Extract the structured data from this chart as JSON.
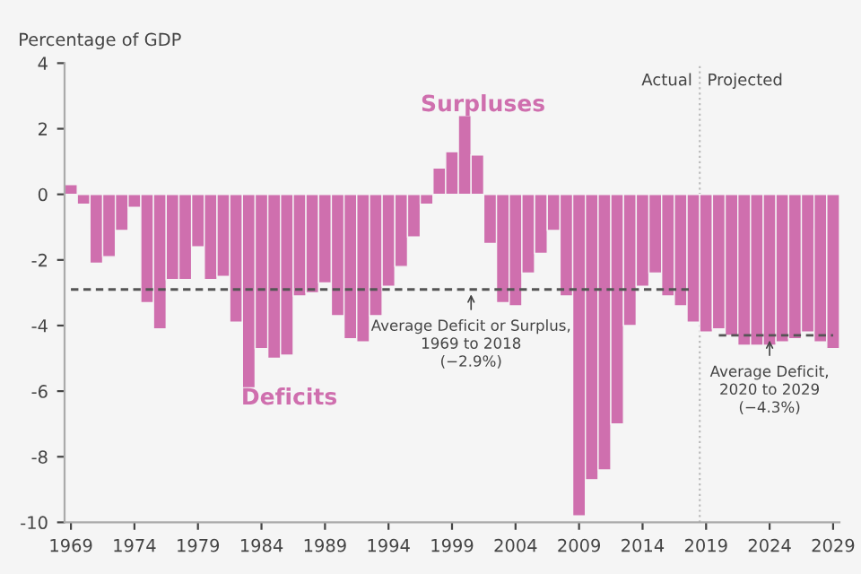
{
  "chart_data": {
    "type": "bar",
    "ylabel": "Percentage of GDP",
    "x": [
      1969,
      1970,
      1971,
      1972,
      1973,
      1974,
      1975,
      1976,
      1977,
      1978,
      1979,
      1980,
      1981,
      1982,
      1983,
      1984,
      1985,
      1986,
      1987,
      1988,
      1989,
      1990,
      1991,
      1992,
      1993,
      1994,
      1995,
      1996,
      1997,
      1998,
      1999,
      2000,
      2001,
      2002,
      2003,
      2004,
      2005,
      2006,
      2007,
      2008,
      2009,
      2010,
      2011,
      2012,
      2013,
      2014,
      2015,
      2016,
      2017,
      2018,
      2019,
      2020,
      2021,
      2022,
      2023,
      2024,
      2025,
      2026,
      2027,
      2028,
      2029
    ],
    "series": [
      {
        "color": "#cf6fae",
        "values": [
          0.3,
          -0.3,
          -2.1,
          -1.9,
          -1.1,
          -0.4,
          -3.3,
          -4.1,
          -2.6,
          -2.6,
          -1.6,
          -2.6,
          -2.5,
          -3.9,
          -5.9,
          -4.7,
          -5.0,
          -4.9,
          -3.1,
          -3.0,
          -2.7,
          -3.7,
          -4.4,
          -4.5,
          -3.7,
          -2.8,
          -2.2,
          -1.3,
          -0.3,
          0.8,
          1.3,
          2.4,
          1.2,
          -1.5,
          -3.3,
          -3.4,
          -2.4,
          -1.8,
          -1.1,
          -3.1,
          -9.8,
          -8.7,
          -8.4,
          -7.0,
          -4.0,
          -2.8,
          -2.4,
          -3.1,
          -3.4,
          -3.9,
          -4.2,
          -4.1,
          -4.3,
          -4.6,
          -4.6,
          -4.6,
          -4.5,
          -4.4,
          -4.2,
          -4.5,
          -4.7
        ]
      },
      {
        "type": "line",
        "color": "#555555",
        "line_style": "dashed",
        "x": [
          1969,
          2018
        ],
        "values": [
          -2.9,
          -2.9
        ]
      },
      {
        "type": "line",
        "color": "#555555",
        "line_style": "dashed",
        "x": [
          2020,
          2029
        ],
        "values": [
          -4.3,
          -4.3
        ]
      }
    ],
    "xlim": [
      1968.5,
      2029.5
    ],
    "xticks": [
      1969,
      1974,
      1979,
      1984,
      1989,
      1994,
      1999,
      2004,
      2009,
      2014,
      2019,
      2024,
      2029
    ],
    "ylim": [
      -10,
      4
    ],
    "yticks": [
      -10,
      -8,
      -6,
      -4,
      -2,
      0,
      2,
      4
    ],
    "grid": false,
    "ref_lines": [
      {
        "axis": "x",
        "value": 2018.5,
        "color": "#bbbbbb",
        "line_style": "dotted"
      }
    ],
    "annotations": [
      "Surpluses",
      "Deficits",
      {
        "text": "Average Deficit or Surplus,\n1969 to 2018\n(−2.9%)",
        "x": 2000.5,
        "y": -2.9
      },
      {
        "text": "Average Deficit,\n2020 to 2029\n(−4.3%)",
        "x": 2024,
        "y": -4.3
      },
      {
        "text": "Actual",
        "x": 2018.5,
        "y": 4
      },
      {
        "text": "Projected",
        "x": 2018.5,
        "y": 4
      }
    ]
  }
}
